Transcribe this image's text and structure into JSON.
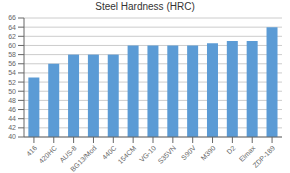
{
  "chart_data": {
    "type": "bar",
    "title": "Steel Hardness (HRC)",
    "categories": [
      "416",
      "420HC",
      "AUS-8",
      "BG13/Mod",
      "440C",
      "154CM",
      "VG-10",
      "S35VN",
      "S90V",
      "M390",
      "D2",
      "Elmax",
      "ZDP-189"
    ],
    "values": [
      53,
      56,
      58,
      58,
      58,
      60,
      60,
      60,
      60,
      60.5,
      61,
      61,
      64
    ],
    "color": "#5b9bd5",
    "ylim": [
      40,
      66
    ],
    "yticks": [
      40,
      42,
      44,
      46,
      48,
      50,
      52,
      54,
      56,
      58,
      60,
      62,
      64,
      66
    ],
    "grid": true
  }
}
